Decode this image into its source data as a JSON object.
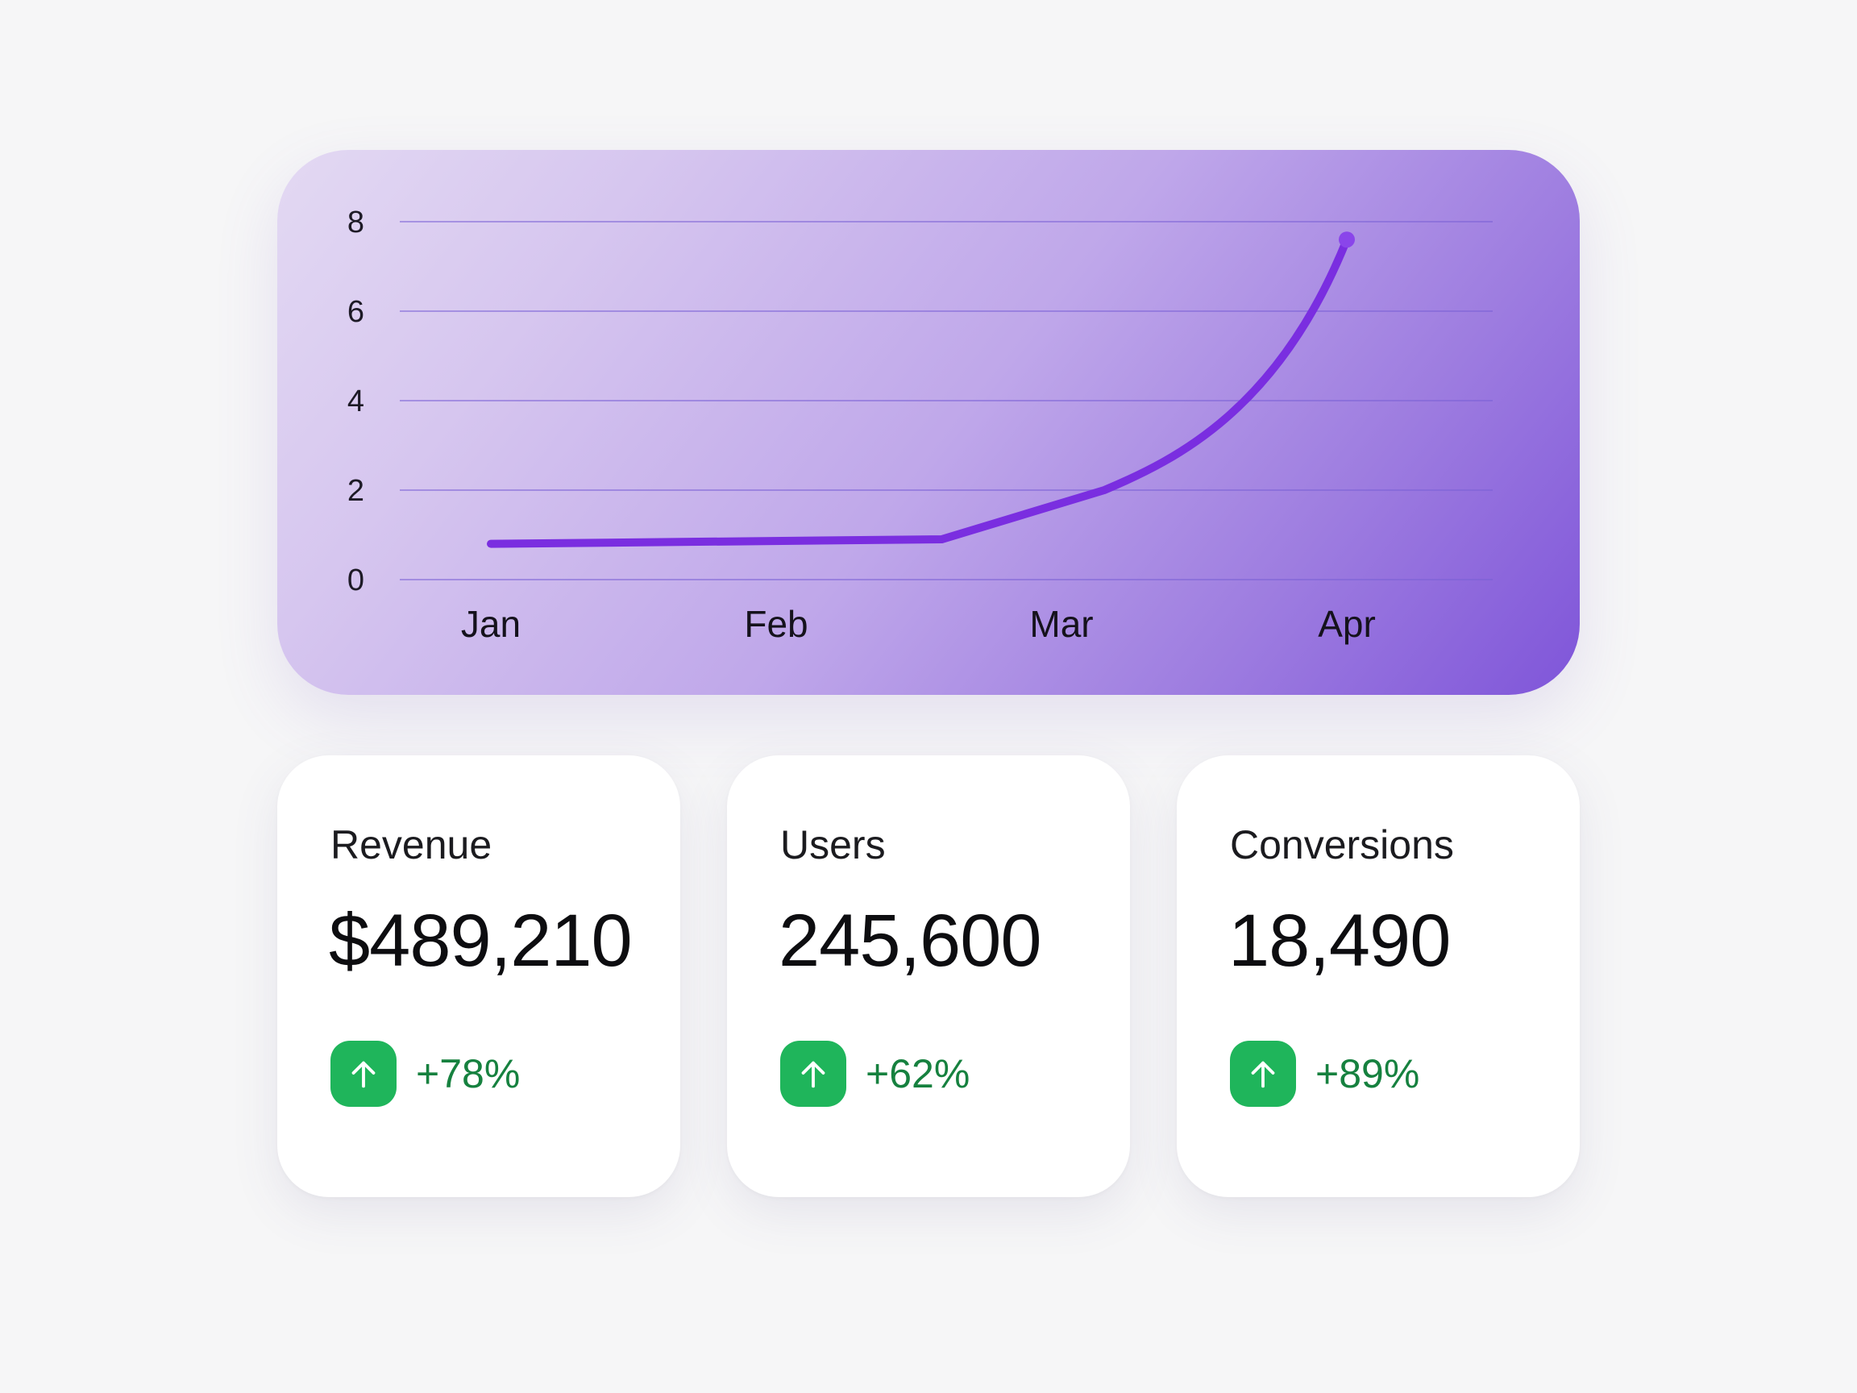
{
  "chart_data": {
    "type": "line",
    "categories": [
      "Jan",
      "Feb",
      "Mar",
      "Apr"
    ],
    "y_ticks": [
      "0",
      "2",
      "4",
      "6",
      "8"
    ],
    "ylim": [
      0,
      8
    ],
    "grid": true,
    "line_color": "#7a2ee0",
    "series": [
      {
        "values_x": [
          0,
          1.58,
          2.15,
          3.0
        ],
        "values_y": [
          0.8,
          0.9,
          2.0,
          7.6
        ]
      }
    ]
  },
  "stats": [
    {
      "label": "Revenue",
      "value": "$489,210",
      "change": "+78%"
    },
    {
      "label": "Users",
      "value": "245,600",
      "change": "+62%"
    },
    {
      "label": "Conversions",
      "value": "18,490",
      "change": "+89%"
    }
  ],
  "colors": {
    "trend_up_bg": "#1fb55b",
    "trend_up_text": "#16813f"
  }
}
